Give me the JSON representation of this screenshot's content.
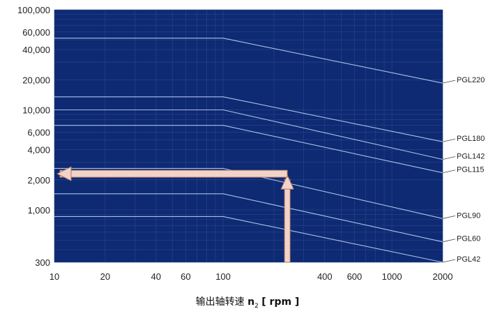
{
  "chart_data": {
    "type": "line",
    "xscale": "log",
    "yscale": "log",
    "xlim": [
      10,
      2000
    ],
    "ylim": [
      300,
      100000
    ],
    "x_ticks": [
      10,
      20,
      40,
      60,
      100,
      400,
      600,
      1000,
      2000
    ],
    "x_tick_labels": [
      "10",
      "20",
      "40",
      "60",
      "100",
      "400",
      "600",
      "1000",
      "2000"
    ],
    "y_ticks": [
      300,
      1000,
      2000,
      4000,
      6000,
      10000,
      20000,
      40000,
      60000,
      100000
    ],
    "y_tick_labels": [
      "300",
      "1,000",
      "2,000",
      "4,000",
      "6,000",
      "10,000",
      "20,000",
      "40,000",
      "60,000",
      "100,000"
    ],
    "xlabel_text": "输出轴转速",
    "xlabel_symbol": "n",
    "xlabel_subscript": "2",
    "xlabel_unit": "[ rpm ]",
    "series": [
      {
        "name": "PGL220",
        "x": [
          10,
          100,
          2000
        ],
        "y": [
          52000,
          52000,
          18500
        ]
      },
      {
        "name": "PGL180",
        "x": [
          10,
          100,
          2000
        ],
        "y": [
          13500,
          13500,
          4800
        ]
      },
      {
        "name": "PGL142",
        "x": [
          10,
          100,
          2000
        ],
        "y": [
          10000,
          10000,
          3200
        ]
      },
      {
        "name": "PGL115",
        "x": [
          10,
          100,
          2000
        ],
        "y": [
          7000,
          7000,
          2350
        ]
      },
      {
        "name": "PGL90",
        "x": [
          10,
          100,
          2000
        ],
        "y": [
          2600,
          2600,
          820
        ]
      },
      {
        "name": "PGL60",
        "x": [
          10,
          100,
          2000
        ],
        "y": [
          1450,
          1450,
          480
        ]
      },
      {
        "name": "PGL42",
        "x": [
          10,
          100,
          2000
        ],
        "y": [
          860,
          860,
          300
        ]
      }
    ],
    "example_reading": {
      "x": 240,
      "y": 2300
    },
    "colors": {
      "plot_bg": "#0d2a73",
      "lines": "#aebfe6",
      "grid": "#2d478e",
      "arrow": "#f2d3c8",
      "arrow_edge": "#b07868"
    }
  }
}
